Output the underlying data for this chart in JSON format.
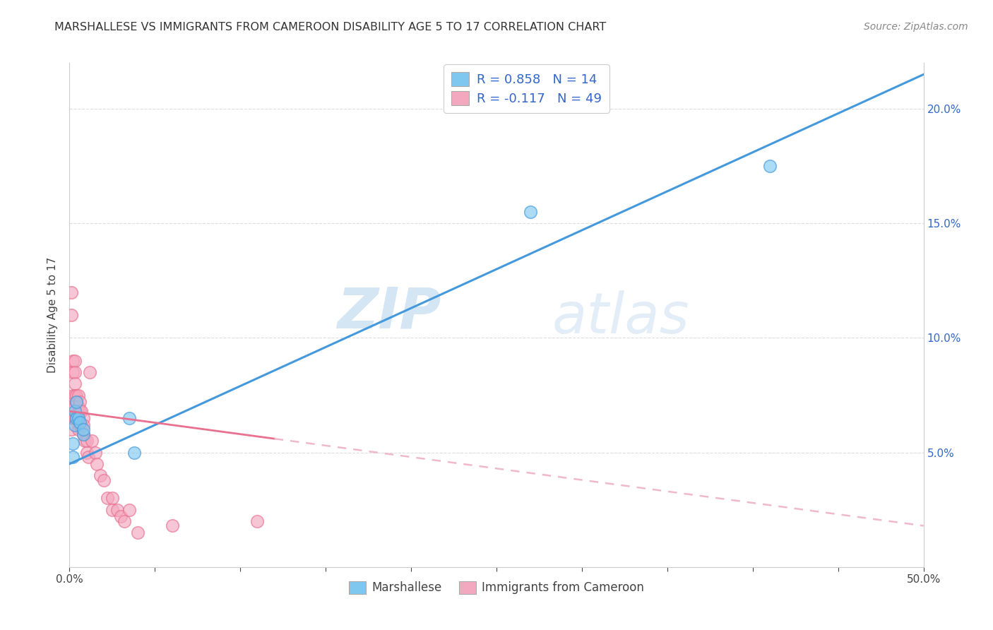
{
  "title": "MARSHALLESE VS IMMIGRANTS FROM CAMEROON DISABILITY AGE 5 TO 17 CORRELATION CHART",
  "source": "Source: ZipAtlas.com",
  "ylabel": "Disability Age 5 to 17",
  "legend_label_1": "Marshallese",
  "legend_label_2": "Immigrants from Cameroon",
  "r1": 0.858,
  "n1": 14,
  "r2": -0.117,
  "n2": 49,
  "color1": "#7ec8f0",
  "color2": "#f4a8c0",
  "line1_color": "#4499dd",
  "line2_color": "#e87090",
  "line2_dash_color": "#f0b8cc",
  "watermark_zip": "ZIP",
  "watermark_atlas": "atlas",
  "xlim": [
    0.0,
    0.5
  ],
  "ylim": [
    0.0,
    0.22
  ],
  "xticks": [
    0.0,
    0.05,
    0.1,
    0.15,
    0.2,
    0.25,
    0.3,
    0.35,
    0.4,
    0.45,
    0.5
  ],
  "yticks": [
    0.0,
    0.05,
    0.1,
    0.15,
    0.2
  ],
  "marshallese_x": [
    0.002,
    0.002,
    0.003,
    0.003,
    0.004,
    0.004,
    0.005,
    0.006,
    0.008,
    0.008,
    0.035,
    0.038,
    0.27,
    0.41
  ],
  "marshallese_y": [
    0.048,
    0.054,
    0.062,
    0.068,
    0.065,
    0.072,
    0.065,
    0.063,
    0.058,
    0.06,
    0.065,
    0.05,
    0.155,
    0.175
  ],
  "cameroon_x": [
    0.001,
    0.001,
    0.001,
    0.002,
    0.002,
    0.002,
    0.002,
    0.002,
    0.003,
    0.003,
    0.003,
    0.003,
    0.003,
    0.003,
    0.004,
    0.004,
    0.004,
    0.005,
    0.005,
    0.005,
    0.005,
    0.006,
    0.006,
    0.006,
    0.007,
    0.007,
    0.008,
    0.008,
    0.008,
    0.009,
    0.01,
    0.01,
    0.011,
    0.012,
    0.013,
    0.015,
    0.016,
    0.018,
    0.02,
    0.022,
    0.025,
    0.025,
    0.028,
    0.03,
    0.032,
    0.035,
    0.04,
    0.06,
    0.11
  ],
  "cameroon_y": [
    0.12,
    0.11,
    0.06,
    0.09,
    0.085,
    0.075,
    0.07,
    0.065,
    0.09,
    0.085,
    0.08,
    0.075,
    0.07,
    0.065,
    0.075,
    0.072,
    0.065,
    0.075,
    0.07,
    0.065,
    0.06,
    0.072,
    0.068,
    0.062,
    0.068,
    0.062,
    0.065,
    0.062,
    0.058,
    0.055,
    0.055,
    0.05,
    0.048,
    0.085,
    0.055,
    0.05,
    0.045,
    0.04,
    0.038,
    0.03,
    0.03,
    0.025,
    0.025,
    0.022,
    0.02,
    0.025,
    0.015,
    0.018,
    0.02
  ],
  "line1_x0": 0.0,
  "line1_y0": 0.045,
  "line1_x1": 0.5,
  "line1_y1": 0.215,
  "line2_x0": 0.0,
  "line2_y0": 0.068,
  "line2_x1": 0.5,
  "line2_y1": 0.018,
  "line2_solid_end": 0.12,
  "background_color": "#ffffff",
  "grid_color": "#dddddd",
  "axis_color": "#cccccc",
  "legend_text_color": "#3366cc",
  "title_color": "#333333",
  "source_color": "#888888"
}
